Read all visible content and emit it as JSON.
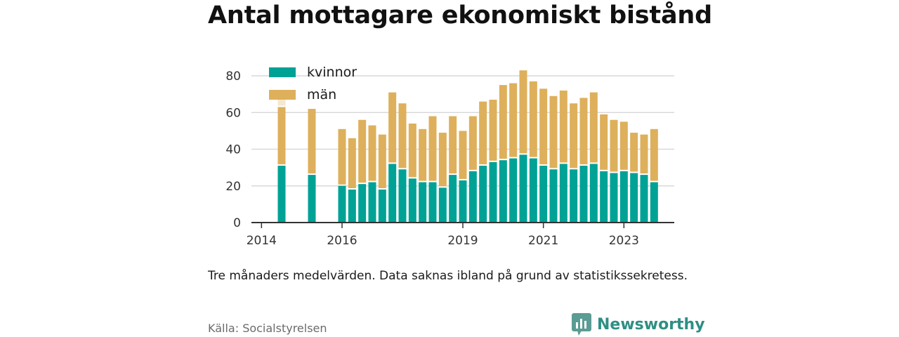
{
  "chart_data": {
    "type": "bar",
    "stacked": true,
    "title": "Antal mottagare ekonomiskt bistånd",
    "xlabel": "",
    "ylabel": "",
    "ylim": [
      0,
      85
    ],
    "yticks": [
      0,
      20,
      40,
      60,
      80
    ],
    "xticks": [
      2014,
      2016,
      2019,
      2021,
      2023
    ],
    "xlim": [
      2013.75,
      2024.25
    ],
    "grid": true,
    "legend": "top-left",
    "x": [
      2014.5,
      2015.25,
      2016.0,
      2016.25,
      2016.5,
      2016.75,
      2017.0,
      2017.25,
      2017.5,
      2017.75,
      2018.0,
      2018.25,
      2018.5,
      2018.75,
      2019.0,
      2019.25,
      2019.5,
      2019.75,
      2020.0,
      2020.25,
      2020.5,
      2020.75,
      2021.0,
      2021.25,
      2021.5,
      2021.75,
      2022.0,
      2022.25,
      2022.5,
      2022.75,
      2023.0,
      2023.25,
      2023.5,
      2023.75
    ],
    "series": [
      {
        "name": "kvinnor",
        "color": "#00a296",
        "values": [
          31,
          26,
          20,
          18,
          21,
          22,
          18,
          32,
          29,
          24,
          22,
          22,
          19,
          26,
          23,
          28,
          31,
          33,
          34,
          35,
          37,
          35,
          31,
          29,
          32,
          29,
          31,
          32,
          28,
          27,
          28,
          27,
          26,
          22
        ]
      },
      {
        "name": "män",
        "color": "#deb05c",
        "values": [
          32,
          36,
          31,
          28,
          35,
          31,
          30,
          39,
          36,
          30,
          29,
          36,
          30,
          32,
          27,
          30,
          35,
          34,
          41,
          41,
          46,
          42,
          42,
          40,
          40,
          36,
          37,
          39,
          31,
          29,
          27,
          22,
          22,
          29
        ]
      }
    ],
    "faded_segments": [
      {
        "x": 2014.5,
        "value": 5,
        "color": "#f5e8cf"
      }
    ]
  },
  "caption": "Tre månaders medelvärden. Data saknas ibland på grund av statistikssekretess.",
  "source": "Källa: Socialstyrelsen",
  "brand": {
    "name": "Newsworthy",
    "color": "#2e8f84"
  }
}
